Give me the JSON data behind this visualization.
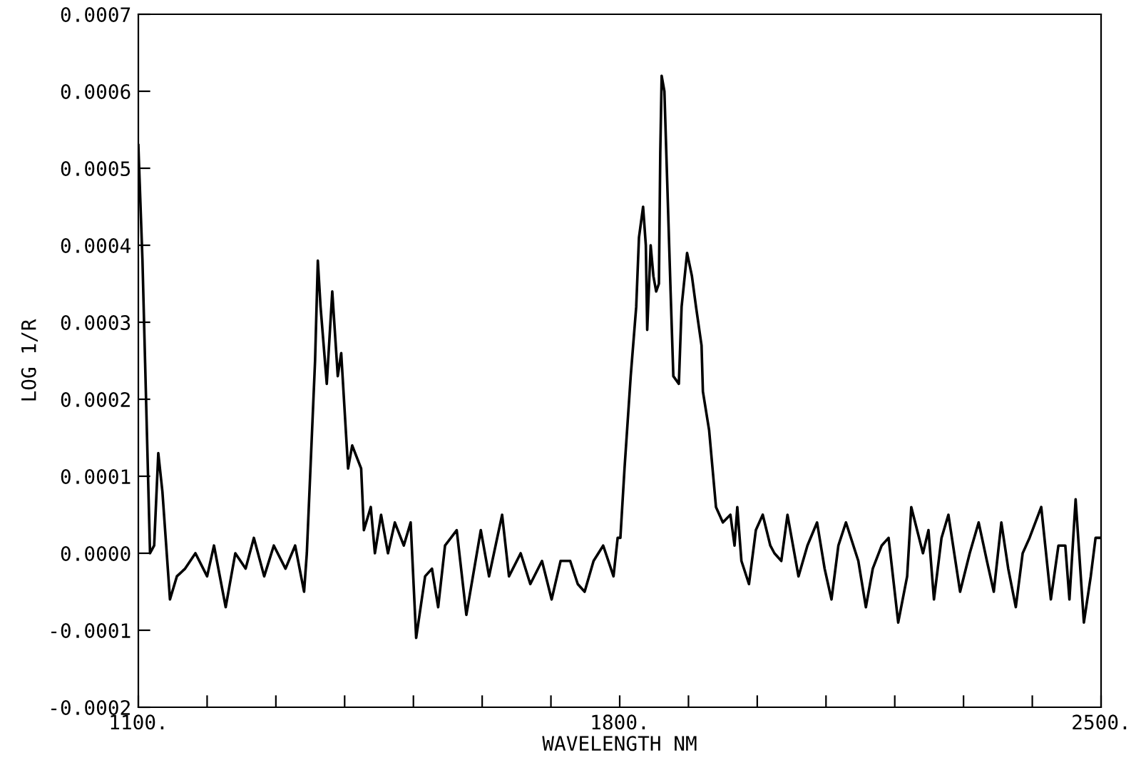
{
  "chart_data": {
    "type": "line",
    "xlabel": "WAVELENGTH NM",
    "ylabel": "LOG 1/R",
    "x": [
      1100,
      1106,
      1117,
      1123,
      1129,
      1135,
      1146,
      1156,
      1168,
      1183,
      1200,
      1210,
      1227,
      1241,
      1256,
      1268,
      1283,
      1297,
      1314,
      1328,
      1341,
      1345,
      1357,
      1361,
      1365,
      1374,
      1382,
      1390,
      1395,
      1405,
      1411,
      1424,
      1428,
      1438,
      1444,
      1453,
      1463,
      1473,
      1486,
      1496,
      1504,
      1517,
      1527,
      1536,
      1546,
      1563,
      1577,
      1598,
      1610,
      1629,
      1639,
      1656,
      1670,
      1687,
      1701,
      1714,
      1728,
      1739,
      1749,
      1762,
      1776,
      1791,
      1797,
      1801,
      1807,
      1816,
      1824,
      1828,
      1834,
      1838,
      1840,
      1845,
      1849,
      1853,
      1857,
      1859,
      1861,
      1865,
      1874,
      1878,
      1886,
      1890,
      1898,
      1905,
      1911,
      1919,
      1921,
      1930,
      1934,
      1940,
      1950,
      1961,
      1967,
      1971,
      1977,
      1988,
      1998,
      2008,
      2019,
      2025,
      2035,
      2044,
      2060,
      2073,
      2087,
      2098,
      2108,
      2118,
      2129,
      2147,
      2158,
      2168,
      2181,
      2191,
      2205,
      2218,
      2224,
      2241,
      2249,
      2257,
      2268,
      2278,
      2295,
      2309,
      2322,
      2334,
      2344,
      2355,
      2365,
      2376,
      2386,
      2396,
      2413,
      2427,
      2438,
      2448,
      2454,
      2463,
      2475,
      2485,
      2492,
      2498
    ],
    "series": [
      {
        "color": "#000000",
        "values": [
          0.00053,
          0.00038,
          0.0,
          1e-05,
          0.00013,
          8e-05,
          -6e-05,
          -3e-05,
          -2e-05,
          0.0,
          -3e-05,
          1e-05,
          -7e-05,
          0.0,
          -2e-05,
          2e-05,
          -3e-05,
          1e-05,
          -2e-05,
          1e-05,
          -5e-05,
          0.0,
          0.00025,
          0.00038,
          0.00032,
          0.00022,
          0.00034,
          0.00023,
          0.00026,
          0.00011,
          0.00014,
          0.00011,
          3e-05,
          6e-05,
          0.0,
          5e-05,
          0.0,
          4e-05,
          1e-05,
          4e-05,
          -0.00011,
          -3e-05,
          -2e-05,
          -7e-05,
          1e-05,
          3e-05,
          -8e-05,
          3e-05,
          -3e-05,
          5e-05,
          -3e-05,
          0.0,
          -4e-05,
          -1e-05,
          -6e-05,
          -1e-05,
          -1e-05,
          -4e-05,
          -5e-05,
          -1e-05,
          1e-05,
          -3e-05,
          2e-05,
          2e-05,
          0.00011,
          0.00023,
          0.00032,
          0.00041,
          0.00045,
          0.0004,
          0.00029,
          0.0004,
          0.00036,
          0.00034,
          0.00035,
          0.00052,
          0.00062,
          0.0006,
          0.00034,
          0.00023,
          0.00022,
          0.00032,
          0.00039,
          0.00036,
          0.00032,
          0.00027,
          0.00021,
          0.00016,
          0.00012,
          6e-05,
          4e-05,
          5e-05,
          1e-05,
          6e-05,
          -1e-05,
          -4e-05,
          3e-05,
          5e-05,
          1e-05,
          0.0,
          -1e-05,
          5e-05,
          -3e-05,
          1e-05,
          4e-05,
          -2e-05,
          -6e-05,
          1e-05,
          4e-05,
          -1e-05,
          -7e-05,
          -2e-05,
          1e-05,
          2e-05,
          -9e-05,
          -3e-05,
          6e-05,
          0.0,
          3e-05,
          -6e-05,
          2e-05,
          5e-05,
          -5e-05,
          0.0,
          4e-05,
          -1e-05,
          -5e-05,
          4e-05,
          -2e-05,
          -7e-05,
          0.0,
          2e-05,
          6e-05,
          -6e-05,
          1e-05,
          1e-05,
          -6e-05,
          7e-05,
          -9e-05,
          -3e-05,
          2e-05,
          2e-05
        ]
      }
    ],
    "xlim": [
      1100,
      2500
    ],
    "xticks": [
      {
        "value": 1100,
        "label": "1100."
      },
      {
        "value": 1200,
        "label": null
      },
      {
        "value": 1300,
        "label": null
      },
      {
        "value": 1400,
        "label": null
      },
      {
        "value": 1500,
        "label": null
      },
      {
        "value": 1600,
        "label": null
      },
      {
        "value": 1700,
        "label": null
      },
      {
        "value": 1800,
        "label": "1800."
      },
      {
        "value": 1900,
        "label": null
      },
      {
        "value": 2000,
        "label": null
      },
      {
        "value": 2100,
        "label": null
      },
      {
        "value": 2200,
        "label": null
      },
      {
        "value": 2300,
        "label": null
      },
      {
        "value": 2400,
        "label": null
      },
      {
        "value": 2500,
        "label": "2500."
      }
    ],
    "ylim": [
      -0.0002,
      0.0007
    ],
    "yticks": [
      {
        "value": -0.0002,
        "label": "-0.0002"
      },
      {
        "value": -0.0001,
        "label": "-0.0001"
      },
      {
        "value": 0.0,
        "label": "0.0000"
      },
      {
        "value": 0.0001,
        "label": "0.0001"
      },
      {
        "value": 0.0002,
        "label": "0.0002"
      },
      {
        "value": 0.0003,
        "label": "0.0003"
      },
      {
        "value": 0.0004,
        "label": "0.0004"
      },
      {
        "value": 0.0005,
        "label": "0.0005"
      },
      {
        "value": 0.0006,
        "label": "0.0006"
      },
      {
        "value": 0.0007,
        "label": "0.0007"
      }
    ],
    "grid": false,
    "legend": false,
    "marker": "none",
    "line_style": "solid"
  }
}
